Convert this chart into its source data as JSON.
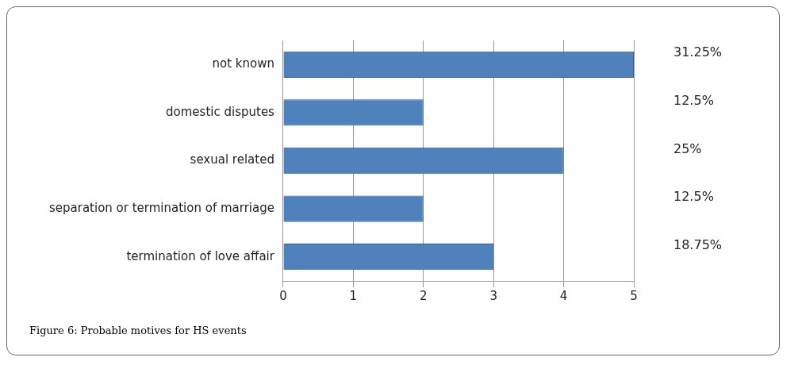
{
  "chart_data": {
    "type": "bar",
    "orientation": "horizontal",
    "title": "Figure 6: Probable motives for HS events",
    "categories": [
      "not known",
      "domestic disputes",
      "sexual related",
      "separation or termination of marriage",
      "termination of love affair"
    ],
    "values": [
      5,
      2,
      4,
      2,
      3
    ],
    "color": "#4f81bd",
    "xlim": [
      0,
      5
    ],
    "xticks": [
      0,
      1,
      2,
      3,
      4,
      5
    ],
    "grid": "x",
    "legend": false,
    "annotations": [
      "31.25%",
      "12.5%",
      "25%",
      "12.5%",
      "18.75%"
    ]
  }
}
